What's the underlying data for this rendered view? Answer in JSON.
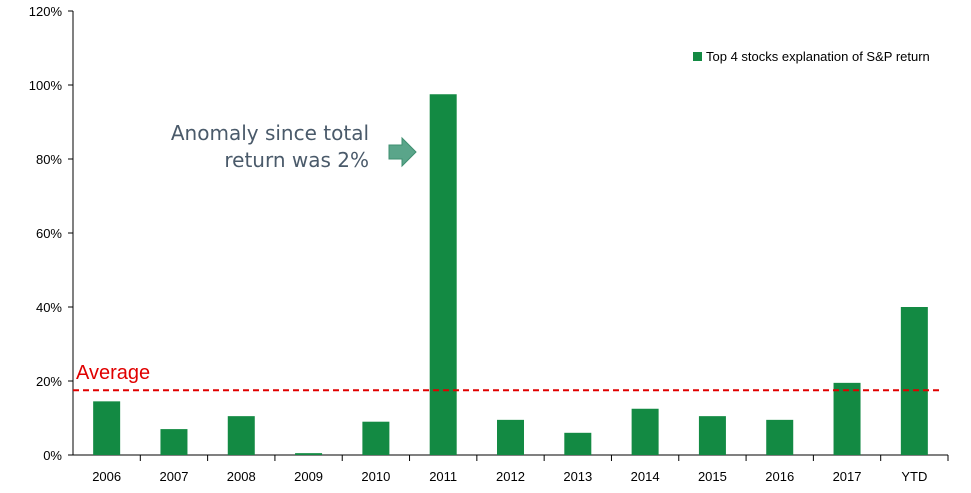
{
  "chart_data": {
    "type": "bar",
    "categories": [
      "2006",
      "2007",
      "2008",
      "2009",
      "2010",
      "2011",
      "2012",
      "2013",
      "2014",
      "2015",
      "2016",
      "2017",
      "YTD"
    ],
    "series": [
      {
        "name": "Top 4 stocks explanation of S&P return",
        "values": [
          14.5,
          7,
          10.5,
          0.5,
          9,
          97.5,
          9.5,
          6,
          12.5,
          10.5,
          9.5,
          19.5,
          40
        ]
      }
    ],
    "yticks": [
      "0%",
      "20%",
      "40%",
      "60%",
      "80%",
      "100%",
      "120%"
    ],
    "ylim": [
      0,
      120
    ],
    "average": {
      "label": "Average",
      "value": 17.5,
      "color": "#e00000"
    },
    "annotation": {
      "lines": [
        "Anomaly since total",
        "return was 2%"
      ]
    },
    "legend_position": "top-right",
    "bar_color": "#138a43",
    "arrow_color": "#5aa58a"
  }
}
